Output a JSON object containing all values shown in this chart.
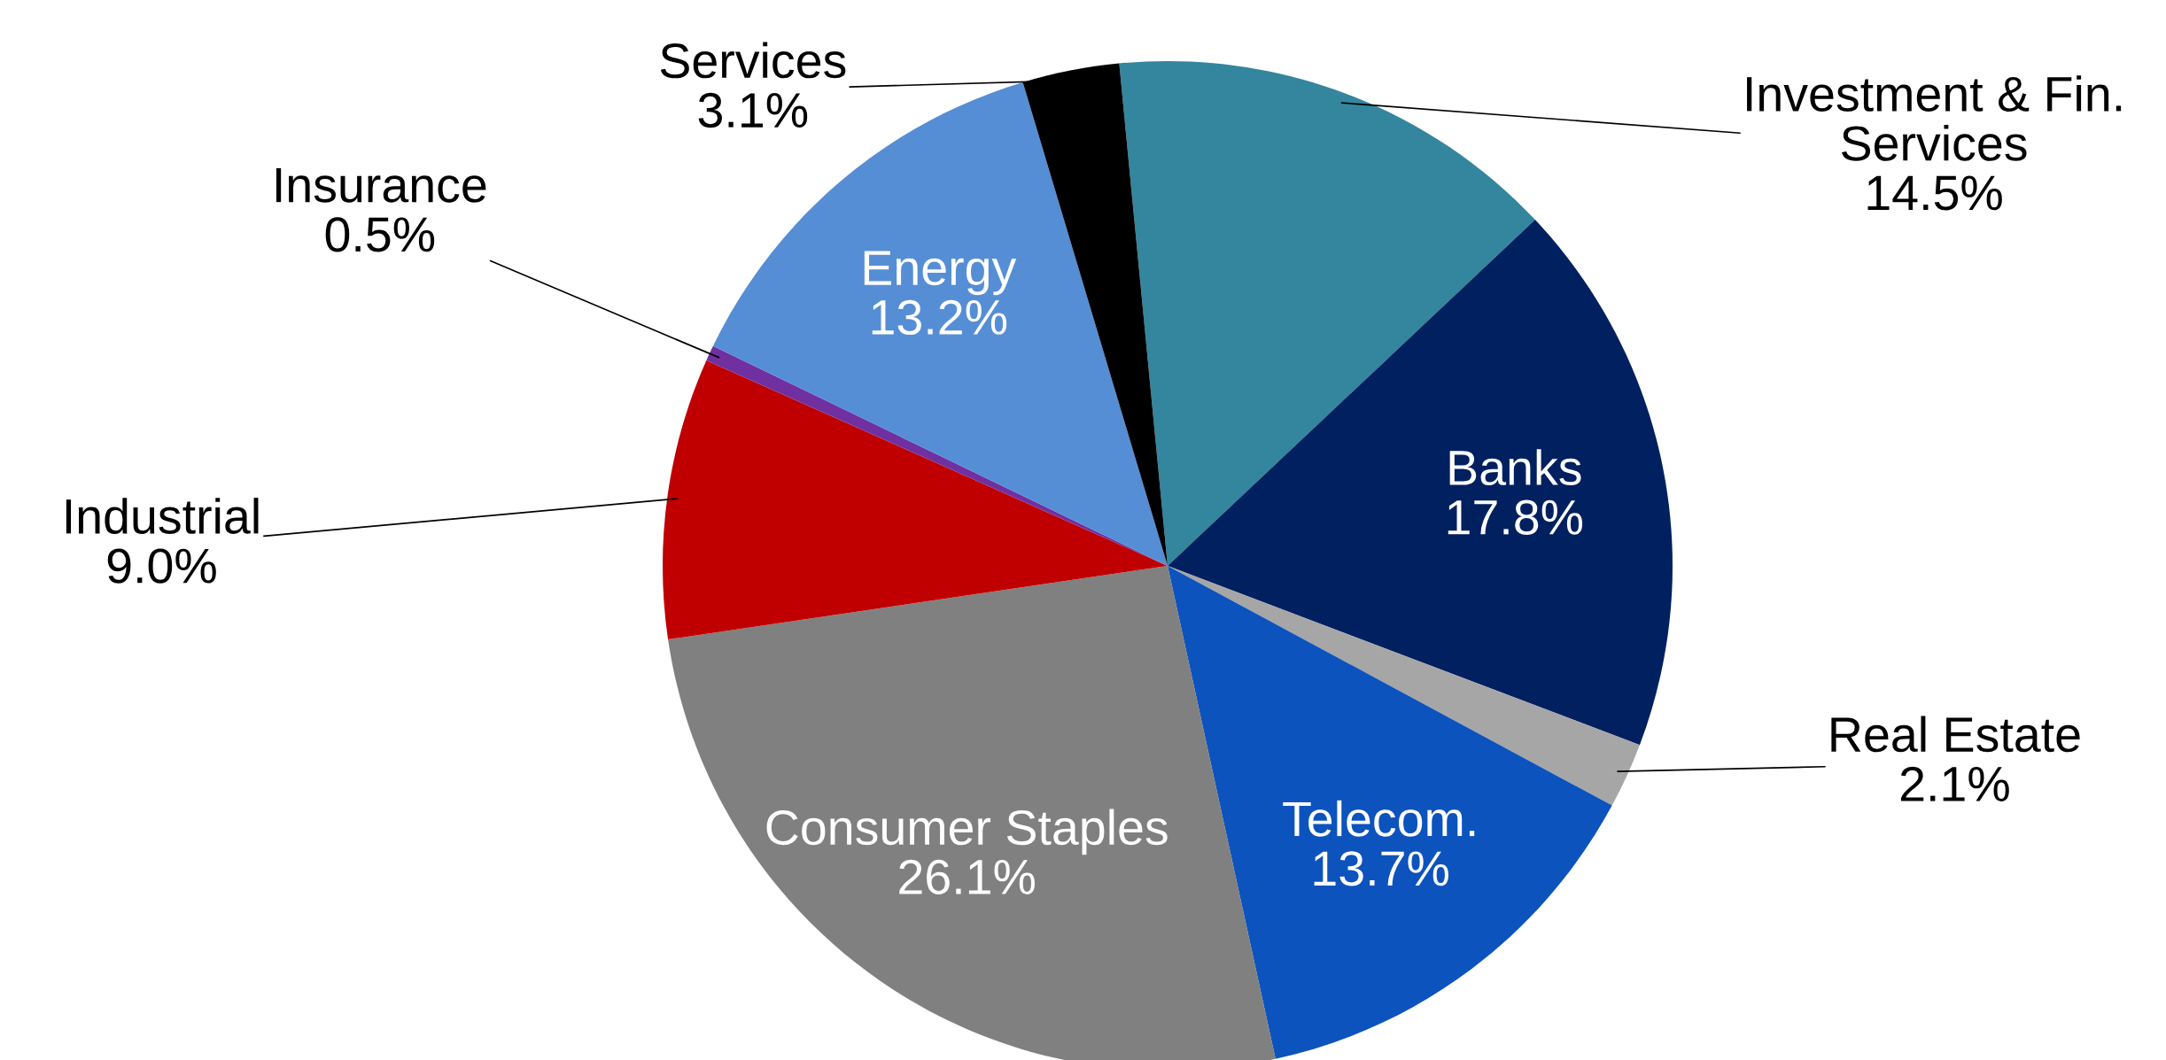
{
  "chart_data": {
    "type": "pie",
    "categories": [
      "Investment & Fin. Services",
      "Banks",
      "Real Estate",
      "Telecom.",
      "Consumer Staples",
      "Industrial",
      "Insurance",
      "Energy",
      "Services"
    ],
    "values": [
      14.5,
      17.8,
      2.1,
      13.7,
      26.1,
      9.0,
      0.5,
      13.2,
      3.1
    ],
    "value_labels": [
      "14.5%",
      "17.8%",
      "2.1%",
      "13.7%",
      "26.1%",
      "9.0%",
      "0.5%",
      "13.2%",
      "3.1%"
    ],
    "colors": [
      "#33869e",
      "#002060",
      "#a6a6a6",
      "#0c53bd",
      "#808080",
      "#c00000",
      "#7030a0",
      "#558ed5",
      "#000000"
    ],
    "legend": false
  }
}
